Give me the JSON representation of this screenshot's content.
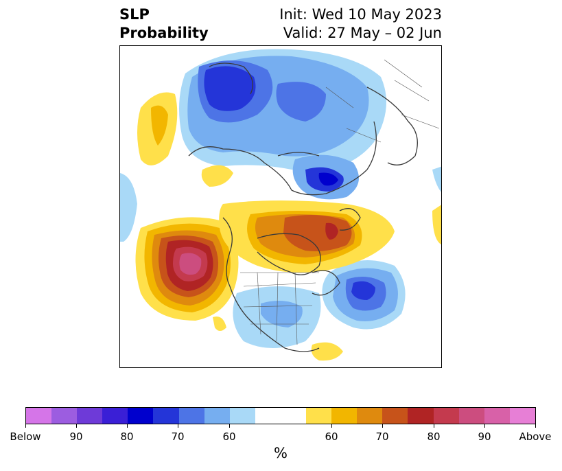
{
  "title": {
    "left_line1": "SLP",
    "left_line2": "Probability",
    "right_line1": "Init: Wed 10 May 2023",
    "right_line2": "Valid: 27 May – 02 Jun"
  },
  "colorbar": {
    "below_colors": [
      "#d575e8",
      "#9c5de0",
      "#6e3ad8",
      "#3a1fd6",
      "#0000cd",
      "#2435d8",
      "#4d74e6",
      "#76aef0",
      "#a9d9f7"
    ],
    "neutral_color": "#ffffff",
    "above_colors": [
      "#ffe04a",
      "#f2b600",
      "#df8a0e",
      "#c7531a",
      "#b02424",
      "#c43a4e",
      "#cc4d7f",
      "#d861a8",
      "#e77fd6"
    ],
    "tick_labels": [
      "Below",
      "90",
      "80",
      "70",
      "60",
      "60",
      "70",
      "80",
      "90",
      "Above"
    ],
    "unit_label": "%"
  }
}
